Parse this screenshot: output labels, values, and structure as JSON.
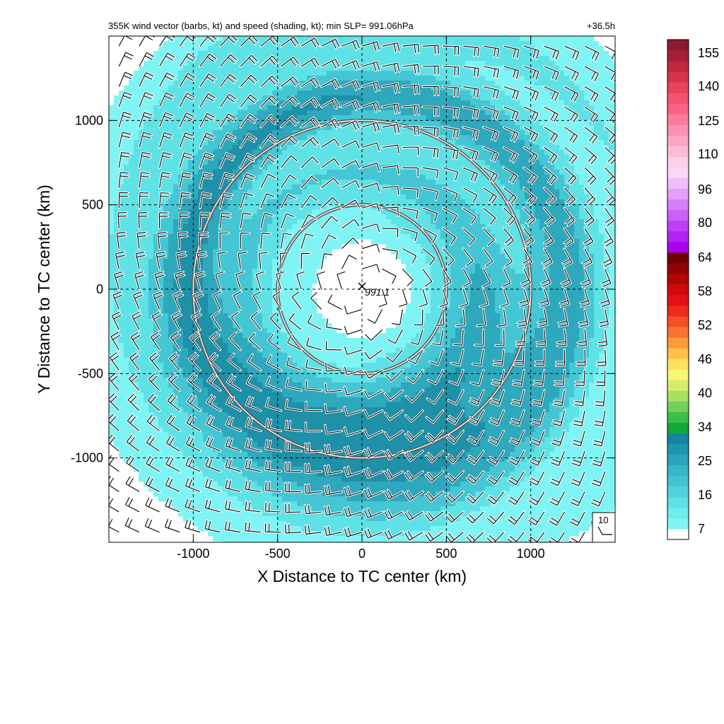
{
  "chart_data": {
    "type": "heatmap",
    "title": "355K wind vector (barbs, kt) and speed (shading, kt); min SLP= 991.06hPa",
    "lead_time": "+36.5h",
    "xlabel": "X Distance to TC center (km)",
    "ylabel": "Y Distance to TC center (km)",
    "xlim": [
      -1500,
      1500
    ],
    "ylim": [
      -1500,
      1500
    ],
    "xticks": [
      -1000,
      -500,
      0,
      500,
      1000
    ],
    "yticks": [
      -1000,
      -500,
      0,
      500,
      1000
    ],
    "xtick_labels": [
      "-1000",
      "-500",
      "0",
      "500",
      "1000"
    ],
    "ytick_labels": [
      "-1000",
      "-500",
      "0",
      "500",
      "1000"
    ],
    "grid": true,
    "center_marker": {
      "x": 0,
      "y": 0,
      "label": "991.1"
    },
    "range_rings_km": [
      500,
      1000
    ],
    "reference_barb": {
      "label": "10"
    },
    "colorbar": {
      "labels": [
        "7",
        "16",
        "25",
        "34",
        "40",
        "46",
        "52",
        "58",
        "64",
        "80",
        "96",
        "110",
        "125",
        "140",
        "155"
      ],
      "colors": [
        "#ffffff",
        "#7ff4f4",
        "#6eecee",
        "#5ee0e6",
        "#50d2dc",
        "#44c4d2",
        "#38b6c8",
        "#2aa6bc",
        "#1e96ae",
        "#14869e",
        "#12a83c",
        "#3cbe4a",
        "#74d058",
        "#a8e064",
        "#d4ee6c",
        "#f6f674",
        "#ffe060",
        "#ffc048",
        "#fc9a3c",
        "#f87430",
        "#f45028",
        "#ee2a1e",
        "#e61014",
        "#d00a0a",
        "#b00606",
        "#900404",
        "#6c0202",
        "#aa00ee",
        "#b422f2",
        "#be40f4",
        "#ca60f6",
        "#d680f8",
        "#e2a0f8",
        "#eebef8",
        "#f8d8f6",
        "#fdd0e8",
        "#fcbcd6",
        "#fca6c4",
        "#fc90b0",
        "#fc7a9a",
        "#fa6484",
        "#f45270",
        "#e8425c",
        "#d6344c",
        "#c02640",
        "#a81e36",
        "#8c1a30"
      ]
    },
    "wind_speed_field": {
      "units": "kt",
      "description_values": {
        "eye_calm_max": 7,
        "inner_band_radius_km": 700,
        "inner_band_speed": 16,
        "outer_band_radius_km": 1100,
        "outer_band_speed": 26,
        "far_field_speed": 10
      }
    }
  }
}
